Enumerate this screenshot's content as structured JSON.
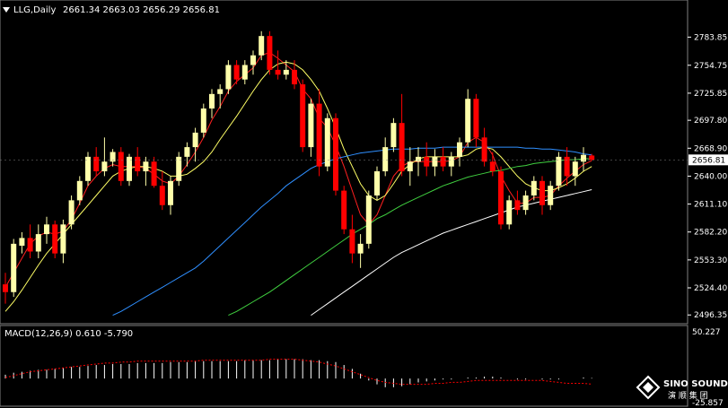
{
  "header": {
    "symbol": "LLG,Daily",
    "ohlc": "2661.34 2663.03 2656.29 2656.81"
  },
  "colors": {
    "background": "#000000",
    "bull": "#ffffaa",
    "bear": "#ff0000",
    "ma_fast": "#ff2020",
    "ma_mid": "#ffff66",
    "ma_60": "#2f8fff",
    "ma_90": "#40d040",
    "ma_slow": "#ffffff",
    "macd_hist": "#ffffff",
    "macd_signal": "#ff0000"
  },
  "logo": {
    "brand": "SINO SOUND",
    "sub": "演 顺 集 团"
  },
  "chart_data": [
    {
      "type": "candlestick",
      "title": "LLG,Daily",
      "current_price": "2656.81",
      "ylim": [
        2491,
        2800
      ],
      "y_ticks": [
        "2783.85",
        "2754.75",
        "2725.85",
        "2697.80",
        "2668.90",
        "2640.00",
        "2611.10",
        "2582.20",
        "2553.30",
        "2524.40",
        "2496.35"
      ],
      "grid": false,
      "candles": [
        {
          "o": 2528,
          "h": 2540,
          "l": 2508,
          "c": 2520
        },
        {
          "o": 2520,
          "h": 2575,
          "l": 2515,
          "c": 2570
        },
        {
          "o": 2568,
          "h": 2582,
          "l": 2560,
          "c": 2576
        },
        {
          "o": 2576,
          "h": 2590,
          "l": 2555,
          "c": 2562
        },
        {
          "o": 2562,
          "h": 2590,
          "l": 2555,
          "c": 2580
        },
        {
          "o": 2580,
          "h": 2598,
          "l": 2570,
          "c": 2590
        },
        {
          "o": 2590,
          "h": 2594,
          "l": 2555,
          "c": 2560
        },
        {
          "o": 2560,
          "h": 2595,
          "l": 2550,
          "c": 2590
        },
        {
          "o": 2590,
          "h": 2620,
          "l": 2585,
          "c": 2615
        },
        {
          "o": 2615,
          "h": 2640,
          "l": 2610,
          "c": 2635
        },
        {
          "o": 2635,
          "h": 2665,
          "l": 2630,
          "c": 2660
        },
        {
          "o": 2660,
          "h": 2670,
          "l": 2640,
          "c": 2645
        },
        {
          "o": 2645,
          "h": 2680,
          "l": 2640,
          "c": 2655
        },
        {
          "o": 2655,
          "h": 2668,
          "l": 2650,
          "c": 2665
        },
        {
          "o": 2665,
          "h": 2670,
          "l": 2630,
          "c": 2635
        },
        {
          "o": 2635,
          "h": 2663,
          "l": 2630,
          "c": 2660
        },
        {
          "o": 2660,
          "h": 2670,
          "l": 2640,
          "c": 2645
        },
        {
          "o": 2645,
          "h": 2660,
          "l": 2630,
          "c": 2655
        },
        {
          "o": 2655,
          "h": 2660,
          "l": 2628,
          "c": 2630
        },
        {
          "o": 2630,
          "h": 2645,
          "l": 2605,
          "c": 2610
        },
        {
          "o": 2610,
          "h": 2640,
          "l": 2600,
          "c": 2635
        },
        {
          "o": 2635,
          "h": 2665,
          "l": 2630,
          "c": 2660
        },
        {
          "o": 2660,
          "h": 2675,
          "l": 2650,
          "c": 2670
        },
        {
          "o": 2670,
          "h": 2690,
          "l": 2655,
          "c": 2685
        },
        {
          "o": 2685,
          "h": 2715,
          "l": 2680,
          "c": 2710
        },
        {
          "o": 2710,
          "h": 2730,
          "l": 2700,
          "c": 2725
        },
        {
          "o": 2725,
          "h": 2735,
          "l": 2710,
          "c": 2730
        },
        {
          "o": 2730,
          "h": 2760,
          "l": 2725,
          "c": 2755
        },
        {
          "o": 2755,
          "h": 2760,
          "l": 2735,
          "c": 2740
        },
        {
          "o": 2740,
          "h": 2760,
          "l": 2735,
          "c": 2755
        },
        {
          "o": 2755,
          "h": 2770,
          "l": 2745,
          "c": 2765
        },
        {
          "o": 2765,
          "h": 2790,
          "l": 2760,
          "c": 2785
        },
        {
          "o": 2785,
          "h": 2790,
          "l": 2745,
          "c": 2750
        },
        {
          "o": 2750,
          "h": 2770,
          "l": 2740,
          "c": 2745
        },
        {
          "o": 2745,
          "h": 2760,
          "l": 2740,
          "c": 2750
        },
        {
          "o": 2750,
          "h": 2760,
          "l": 2730,
          "c": 2735
        },
        {
          "o": 2735,
          "h": 2740,
          "l": 2665,
          "c": 2670
        },
        {
          "o": 2670,
          "h": 2720,
          "l": 2660,
          "c": 2715
        },
        {
          "o": 2715,
          "h": 2730,
          "l": 2640,
          "c": 2650
        },
        {
          "o": 2650,
          "h": 2705,
          "l": 2645,
          "c": 2700
        },
        {
          "o": 2700,
          "h": 2705,
          "l": 2620,
          "c": 2625
        },
        {
          "o": 2625,
          "h": 2630,
          "l": 2580,
          "c": 2585
        },
        {
          "o": 2585,
          "h": 2600,
          "l": 2550,
          "c": 2560
        },
        {
          "o": 2560,
          "h": 2580,
          "l": 2545,
          "c": 2570
        },
        {
          "o": 2570,
          "h": 2625,
          "l": 2565,
          "c": 2620
        },
        {
          "o": 2620,
          "h": 2650,
          "l": 2615,
          "c": 2645
        },
        {
          "o": 2645,
          "h": 2680,
          "l": 2640,
          "c": 2670
        },
        {
          "o": 2670,
          "h": 2700,
          "l": 2665,
          "c": 2695
        },
        {
          "o": 2695,
          "h": 2725,
          "l": 2640,
          "c": 2645
        },
        {
          "o": 2645,
          "h": 2670,
          "l": 2630,
          "c": 2655
        },
        {
          "o": 2655,
          "h": 2670,
          "l": 2640,
          "c": 2660
        },
        {
          "o": 2660,
          "h": 2675,
          "l": 2640,
          "c": 2650
        },
        {
          "o": 2650,
          "h": 2668,
          "l": 2640,
          "c": 2660
        },
        {
          "o": 2660,
          "h": 2670,
          "l": 2645,
          "c": 2650
        },
        {
          "o": 2650,
          "h": 2665,
          "l": 2640,
          "c": 2660
        },
        {
          "o": 2660,
          "h": 2680,
          "l": 2650,
          "c": 2675
        },
        {
          "o": 2675,
          "h": 2730,
          "l": 2670,
          "c": 2720
        },
        {
          "o": 2720,
          "h": 2725,
          "l": 2670,
          "c": 2680
        },
        {
          "o": 2680,
          "h": 2690,
          "l": 2650,
          "c": 2655
        },
        {
          "o": 2655,
          "h": 2665,
          "l": 2640,
          "c": 2645
        },
        {
          "o": 2645,
          "h": 2650,
          "l": 2585,
          "c": 2590
        },
        {
          "o": 2590,
          "h": 2620,
          "l": 2585,
          "c": 2615
        },
        {
          "o": 2615,
          "h": 2625,
          "l": 2600,
          "c": 2605
        },
        {
          "o": 2605,
          "h": 2625,
          "l": 2600,
          "c": 2620
        },
        {
          "o": 2620,
          "h": 2640,
          "l": 2615,
          "c": 2635
        },
        {
          "o": 2635,
          "h": 2640,
          "l": 2600,
          "c": 2610
        },
        {
          "o": 2610,
          "h": 2635,
          "l": 2605,
          "c": 2630
        },
        {
          "o": 2630,
          "h": 2665,
          "l": 2625,
          "c": 2660
        },
        {
          "o": 2660,
          "h": 2670,
          "l": 2630,
          "c": 2640
        },
        {
          "o": 2640,
          "h": 2660,
          "l": 2630,
          "c": 2655
        },
        {
          "o": 2655,
          "h": 2670,
          "l": 2645,
          "c": 2662
        },
        {
          "o": 2661.34,
          "h": 2663.03,
          "l": 2656.29,
          "c": 2656.81
        }
      ],
      "moving_averages": [
        {
          "color_key": "ma_fast",
          "values": [
            2525,
            2540,
            2555,
            2570,
            2578,
            2582,
            2580,
            2583,
            2595,
            2612,
            2630,
            2640,
            2648,
            2652,
            2650,
            2650,
            2650,
            2648,
            2642,
            2635,
            2632,
            2640,
            2652,
            2665,
            2680,
            2698,
            2712,
            2728,
            2738,
            2745,
            2752,
            2765,
            2768,
            2762,
            2755,
            2748,
            2730,
            2720,
            2700,
            2690,
            2672,
            2650,
            2625,
            2600,
            2590,
            2600,
            2620,
            2640,
            2650,
            2655,
            2655,
            2655,
            2655,
            2655,
            2656,
            2660,
            2675,
            2680,
            2675,
            2662,
            2640,
            2625,
            2612,
            2612,
            2618,
            2618,
            2620,
            2630,
            2638,
            2645,
            2652,
            2656
          ]
        },
        {
          "color_key": "ma_mid",
          "values": [
            2500,
            2510,
            2522,
            2535,
            2548,
            2560,
            2570,
            2580,
            2590,
            2600,
            2610,
            2620,
            2630,
            2640,
            2645,
            2648,
            2650,
            2650,
            2648,
            2645,
            2640,
            2640,
            2642,
            2648,
            2655,
            2665,
            2678,
            2690,
            2702,
            2715,
            2728,
            2740,
            2750,
            2756,
            2758,
            2756,
            2750,
            2740,
            2728,
            2710,
            2690,
            2668,
            2650,
            2632,
            2620,
            2615,
            2620,
            2632,
            2645,
            2652,
            2658,
            2660,
            2660,
            2660,
            2660,
            2660,
            2662,
            2668,
            2670,
            2668,
            2660,
            2650,
            2640,
            2632,
            2628,
            2625,
            2625,
            2628,
            2632,
            2638,
            2645,
            2650
          ]
        },
        {
          "color_key": "ma_60",
          "start": 13,
          "values": [
            2496,
            2500,
            2505,
            2510,
            2515,
            2520,
            2525,
            2530,
            2535,
            2540,
            2545,
            2552,
            2560,
            2568,
            2576,
            2584,
            2592,
            2600,
            2608,
            2615,
            2622,
            2630,
            2636,
            2642,
            2648,
            2652,
            2655,
            2658,
            2660,
            2662,
            2664,
            2665,
            2666,
            2667,
            2668,
            2668,
            2668,
            2669,
            2669,
            2669,
            2670,
            2670,
            2670,
            2670,
            2670,
            2670,
            2670,
            2670,
            2670,
            2670,
            2669,
            2669,
            2668,
            2668,
            2667,
            2666,
            2665,
            2663,
            2662
          ]
        },
        {
          "color_key": "ma_90",
          "start": 27,
          "values": [
            2496,
            2500,
            2505,
            2510,
            2515,
            2520,
            2526,
            2532,
            2538,
            2544,
            2550,
            2556,
            2562,
            2568,
            2574,
            2580,
            2585,
            2590,
            2596,
            2600,
            2605,
            2610,
            2614,
            2618,
            2622,
            2626,
            2630,
            2633,
            2636,
            2639,
            2641,
            2643,
            2645,
            2646,
            2648,
            2650,
            2651,
            2653,
            2654,
            2655,
            2656,
            2657,
            2657,
            2658,
            2658
          ]
        },
        {
          "color_key": "ma_slow",
          "start": 37,
          "values": [
            2496,
            2502,
            2508,
            2514,
            2520,
            2526,
            2532,
            2538,
            2544,
            2550,
            2556,
            2561,
            2565,
            2569,
            2573,
            2577,
            2581,
            2584,
            2587,
            2590,
            2593,
            2596,
            2599,
            2602,
            2605,
            2608,
            2610,
            2612,
            2614,
            2616,
            2618,
            2620,
            2622,
            2624,
            2626
          ]
        }
      ]
    },
    {
      "type": "bar",
      "title": "MACD(12,26,9) 0.610 -5.790",
      "ylim": [
        -25.857,
        50.227
      ],
      "y_ticks": [
        "50.227",
        "-25.857"
      ],
      "macd": [
        4,
        6,
        7,
        8,
        9,
        9,
        10,
        11,
        12,
        12,
        13,
        14,
        14,
        15,
        15,
        15,
        16,
        16,
        16,
        16,
        17,
        17,
        17,
        18,
        18,
        18,
        18,
        18,
        18,
        19,
        19,
        19,
        19,
        20,
        20,
        20,
        20,
        19,
        19,
        18,
        17,
        14,
        10,
        5,
        -2,
        -6,
        -9,
        -9,
        -8,
        -6,
        -4,
        -3,
        -2,
        -1,
        -1,
        0,
        1,
        1,
        2,
        2,
        1,
        0,
        -1,
        -1,
        0,
        -1,
        -1,
        -1,
        0,
        0,
        1,
        0.61
      ],
      "signal": [
        1,
        3,
        5,
        7,
        8,
        9,
        10,
        11,
        12,
        13,
        14,
        15,
        16,
        16,
        17,
        17,
        18,
        18,
        18,
        18,
        18,
        18,
        18,
        18,
        19,
        19,
        19,
        19,
        19,
        19,
        19,
        19,
        20,
        20,
        20,
        20,
        19,
        18,
        17,
        15,
        13,
        10,
        7,
        4,
        1,
        -2,
        -4,
        -5,
        -6,
        -6,
        -6,
        -6,
        -5,
        -5,
        -4,
        -4,
        -3,
        -2,
        -2,
        -2,
        -2,
        -2,
        -2,
        -2,
        -2,
        -2,
        -3,
        -4,
        -5,
        -5,
        -5,
        -5.79
      ]
    }
  ]
}
